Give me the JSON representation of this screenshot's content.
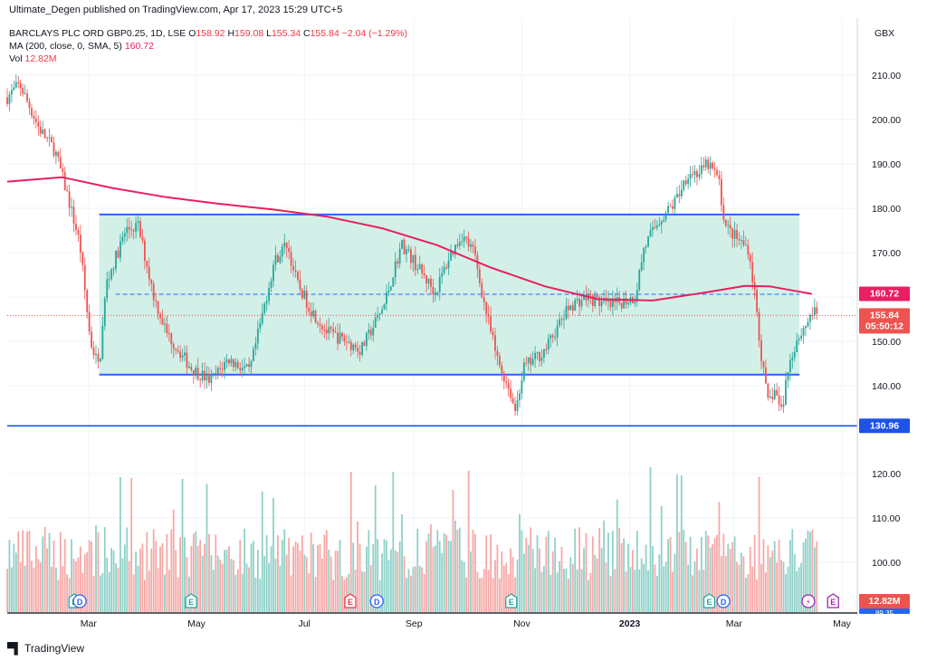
{
  "header": {
    "published": "Ultimate_Degen published on TradingView.com, Apr 17, 2023 15:29 UTC+5",
    "symbol_label": "BARCLAYS PLC ORD GBP0.25, 1D, LSE",
    "ohlc": {
      "o_label": "O",
      "o": "158.92",
      "h_label": "H",
      "h": "159.08",
      "l_label": "L",
      "l": "155.34",
      "c_label": "C",
      "c": "155.84",
      "change": "−2.04 (−1.29%)"
    },
    "ma_label": "MA (200, close, 0, SMA, 5)",
    "ma_value": "160.72",
    "vol_label": "Vol",
    "vol_value": "12.82M",
    "currency": "GBX"
  },
  "price_labels": {
    "ma": "160.72",
    "last": "155.84",
    "countdown": "05:50:12",
    "support": "130.96",
    "vol": "12.82M",
    "bottom": "89.35"
  },
  "events": [
    {
      "x": "2022-02-21",
      "type": "E"
    },
    {
      "x": "2022-02-24",
      "type": "D"
    },
    {
      "x": "2022-04-28",
      "type": "E"
    },
    {
      "x": "2022-07-27",
      "type": "E-red"
    },
    {
      "x": "2022-08-11",
      "type": "D"
    },
    {
      "x": "2022-10-26",
      "type": "E"
    },
    {
      "x": "2023-02-15",
      "type": "E"
    },
    {
      "x": "2023-02-23",
      "type": "D"
    },
    {
      "x": "2023-04-12",
      "type": "bolt"
    },
    {
      "x": "2023-04-26",
      "type": "E-purple"
    }
  ],
  "brand": {
    "name": "TradingView",
    "logo": "tradingview-logo"
  },
  "colors": {
    "up": "#26a69a",
    "down": "#ef5350",
    "ma": "#e91e63",
    "range": "#2962ff",
    "range_fill": "#cdeee6",
    "vol_up": "#8fd1c8",
    "vol_down": "#f5a9a7"
  },
  "chart_data": {
    "type": "candlestick",
    "y_axis": {
      "ticks": [
        210,
        200,
        190,
        180,
        170,
        160,
        150,
        140
      ],
      "tick_labels": [
        "210.00",
        "200.00",
        "190.00",
        "180.00",
        "170.00",
        "160.00",
        "150.00",
        "140.00"
      ]
    },
    "vol_axis": {
      "ticks": [
        120,
        110,
        100
      ],
      "tick_labels": [
        "120.00",
        "110.00",
        "100.00"
      ]
    },
    "x_axis": {
      "ticks": [
        "2022-03-01",
        "2022-05-01",
        "2022-07-01",
        "2022-09-01",
        "2022-11-01",
        "2023-01-01",
        "2023-03-01",
        "2023-05-01"
      ],
      "tick_labels": [
        "Mar",
        "May",
        "Jul",
        "Sep",
        "Nov",
        "2023",
        "Mar",
        "May"
      ]
    },
    "range_box": {
      "start": "2022-03-07",
      "end": "2023-04-07",
      "top": 178.6,
      "bottom": 142.5,
      "mid": 160.6
    },
    "support_line": 130.96,
    "last_price": 155.84,
    "ma_points": [
      [
        "2022-01-14",
        186
      ],
      [
        "2022-02-14",
        187
      ],
      [
        "2022-03-14",
        184.6
      ],
      [
        "2022-04-14",
        182.5
      ],
      [
        "2022-05-14",
        181
      ],
      [
        "2022-06-14",
        179.7
      ],
      [
        "2022-07-14",
        178.1
      ],
      [
        "2022-08-14",
        175.5
      ],
      [
        "2022-09-14",
        171.7
      ],
      [
        "2022-10-14",
        166.7
      ],
      [
        "2022-11-14",
        162.4
      ],
      [
        "2022-12-14",
        159.5
      ],
      [
        "2023-01-14",
        159.2
      ],
      [
        "2023-02-14",
        161.1
      ],
      [
        "2023-03-07",
        162.5
      ],
      [
        "2023-03-21",
        162.4
      ],
      [
        "2023-04-14",
        160.7
      ]
    ],
    "price_path": [
      [
        "2022-01-14",
        205
      ],
      [
        "2022-01-21",
        208
      ],
      [
        "2022-02-01",
        198
      ],
      [
        "2022-02-10",
        193
      ],
      [
        "2022-02-17",
        183
      ],
      [
        "2022-02-24",
        172
      ],
      [
        "2022-03-02",
        150
      ],
      [
        "2022-03-07",
        144
      ],
      [
        "2022-03-11",
        163
      ],
      [
        "2022-03-22",
        175
      ],
      [
        "2022-03-29",
        176
      ],
      [
        "2022-04-07",
        160
      ],
      [
        "2022-04-14",
        152
      ],
      [
        "2022-04-28",
        144
      ],
      [
        "2022-05-09",
        141
      ],
      [
        "2022-05-19",
        146
      ],
      [
        "2022-05-31",
        143
      ],
      [
        "2022-06-14",
        168
      ],
      [
        "2022-06-21",
        172
      ],
      [
        "2022-06-27",
        163
      ],
      [
        "2022-07-05",
        157
      ],
      [
        "2022-07-14",
        152
      ],
      [
        "2022-07-25",
        150
      ],
      [
        "2022-08-02",
        148
      ],
      [
        "2022-08-15",
        158
      ],
      [
        "2022-08-25",
        172
      ],
      [
        "2022-09-06",
        165
      ],
      [
        "2022-09-13",
        161
      ],
      [
        "2022-09-21",
        169
      ],
      [
        "2022-09-28",
        174
      ],
      [
        "2022-10-05",
        170
      ],
      [
        "2022-10-11",
        158
      ],
      [
        "2022-10-18",
        146
      ],
      [
        "2022-10-26",
        138
      ],
      [
        "2022-10-28",
        134
      ],
      [
        "2022-11-02",
        144
      ],
      [
        "2022-11-14",
        148
      ],
      [
        "2022-11-28",
        158
      ],
      [
        "2022-12-07",
        160
      ],
      [
        "2022-12-21",
        158
      ],
      [
        "2023-01-04",
        160
      ],
      [
        "2023-01-09",
        171
      ],
      [
        "2023-01-17",
        177
      ],
      [
        "2023-01-26",
        181
      ],
      [
        "2023-02-03",
        188
      ],
      [
        "2023-02-10",
        188
      ],
      [
        "2023-02-14",
        190
      ],
      [
        "2023-02-20",
        187
      ],
      [
        "2023-02-24",
        176
      ],
      [
        "2023-03-03",
        173
      ],
      [
        "2023-03-09",
        171
      ],
      [
        "2023-03-13",
        160
      ],
      [
        "2023-03-16",
        148
      ],
      [
        "2023-03-20",
        136
      ],
      [
        "2023-03-24",
        139
      ],
      [
        "2023-03-28",
        134
      ],
      [
        "2023-03-31",
        143
      ],
      [
        "2023-04-05",
        150
      ],
      [
        "2023-04-11",
        154
      ],
      [
        "2023-04-14",
        156.7
      ],
      [
        "2023-04-17",
        155.84
      ]
    ]
  }
}
